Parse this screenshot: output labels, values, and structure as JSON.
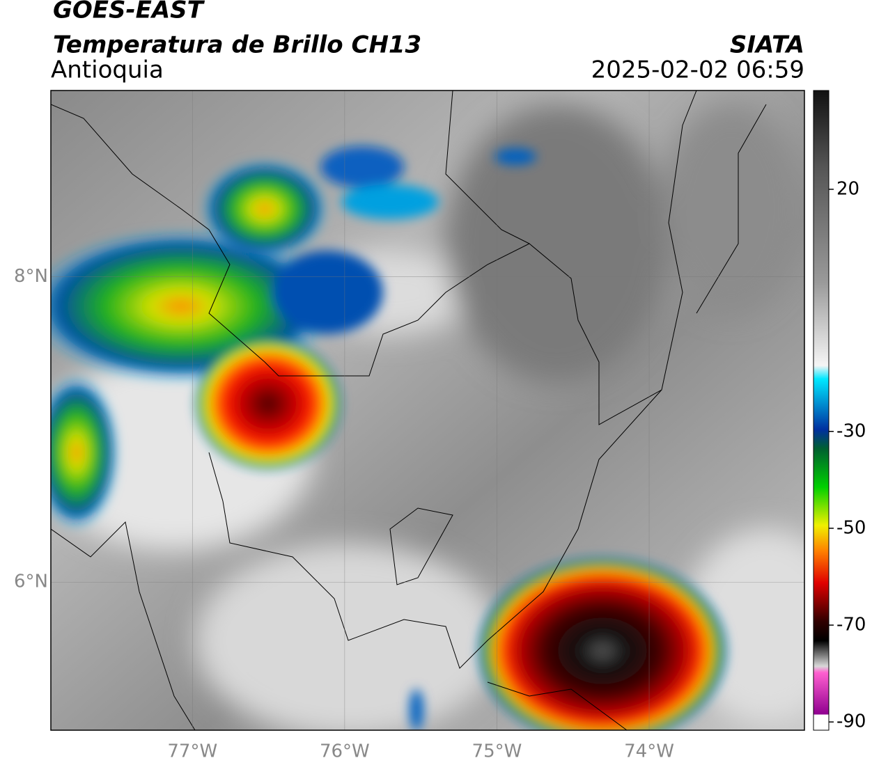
{
  "header": {
    "title": "GOES-EAST",
    "subtitle": "Temperatura de Brillo CH13",
    "region": "Antioquia",
    "source": "SIATA",
    "datetime": "2025-02-02 06:59"
  },
  "map": {
    "xlim": [
      -77.93,
      -72.98
    ],
    "ylim": [
      5.03,
      9.22
    ],
    "xticks": [
      {
        "value": -77,
        "label": "77°W"
      },
      {
        "value": -76,
        "label": "76°W"
      },
      {
        "value": -75,
        "label": "75°W"
      },
      {
        "value": -74,
        "label": "74°W"
      }
    ],
    "yticks": [
      {
        "value": 6,
        "label": "6°N"
      },
      {
        "value": 8,
        "label": "8°N"
      }
    ],
    "grid": true
  },
  "colorbar": {
    "lim": [
      -91.7,
      40.4
    ],
    "ticks": [
      20,
      -30,
      -50,
      -70,
      -90
    ]
  }
}
